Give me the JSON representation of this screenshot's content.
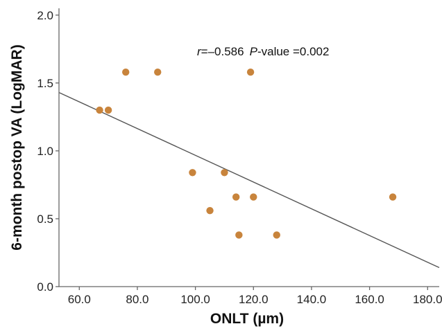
{
  "chart_data": {
    "type": "scatter",
    "xlabel": "ONLT (µm)",
    "ylabel": "6-month postop VA (LogMAR)",
    "xlim": [
      53,
      184
    ],
    "ylim": [
      0.0,
      2.05
    ],
    "x_ticks": [
      60,
      80,
      100,
      120,
      140,
      160,
      180
    ],
    "x_tick_labels": [
      "60.0",
      "80.0",
      "100.0",
      "120.0",
      "140.0",
      "160.0",
      "180.0"
    ],
    "y_ticks": [
      0.0,
      0.5,
      1.0,
      1.5,
      2.0
    ],
    "y_tick_labels": [
      "0.0",
      "0.5",
      "1.0",
      "1.5",
      "2.0"
    ],
    "grid": false,
    "points": [
      {
        "x": 67,
        "y": 1.3
      },
      {
        "x": 70,
        "y": 1.3
      },
      {
        "x": 76,
        "y": 1.58
      },
      {
        "x": 87,
        "y": 1.58
      },
      {
        "x": 99,
        "y": 0.84
      },
      {
        "x": 105,
        "y": 0.56
      },
      {
        "x": 110,
        "y": 0.84
      },
      {
        "x": 114,
        "y": 0.66
      },
      {
        "x": 115,
        "y": 0.38
      },
      {
        "x": 119,
        "y": 1.58
      },
      {
        "x": 120,
        "y": 0.66
      },
      {
        "x": 128,
        "y": 0.38
      },
      {
        "x": 168,
        "y": 0.66
      }
    ],
    "fit_line": {
      "x": [
        53,
        184
      ],
      "y": [
        1.43,
        0.14
      ]
    },
    "annotation": {
      "r_symbol": "r",
      "r_value": "=–0.586",
      "p_symbol": "P",
      "p_value": "-value =0.002"
    },
    "colors": {
      "point": "#c8843c",
      "line": "#555555"
    }
  }
}
